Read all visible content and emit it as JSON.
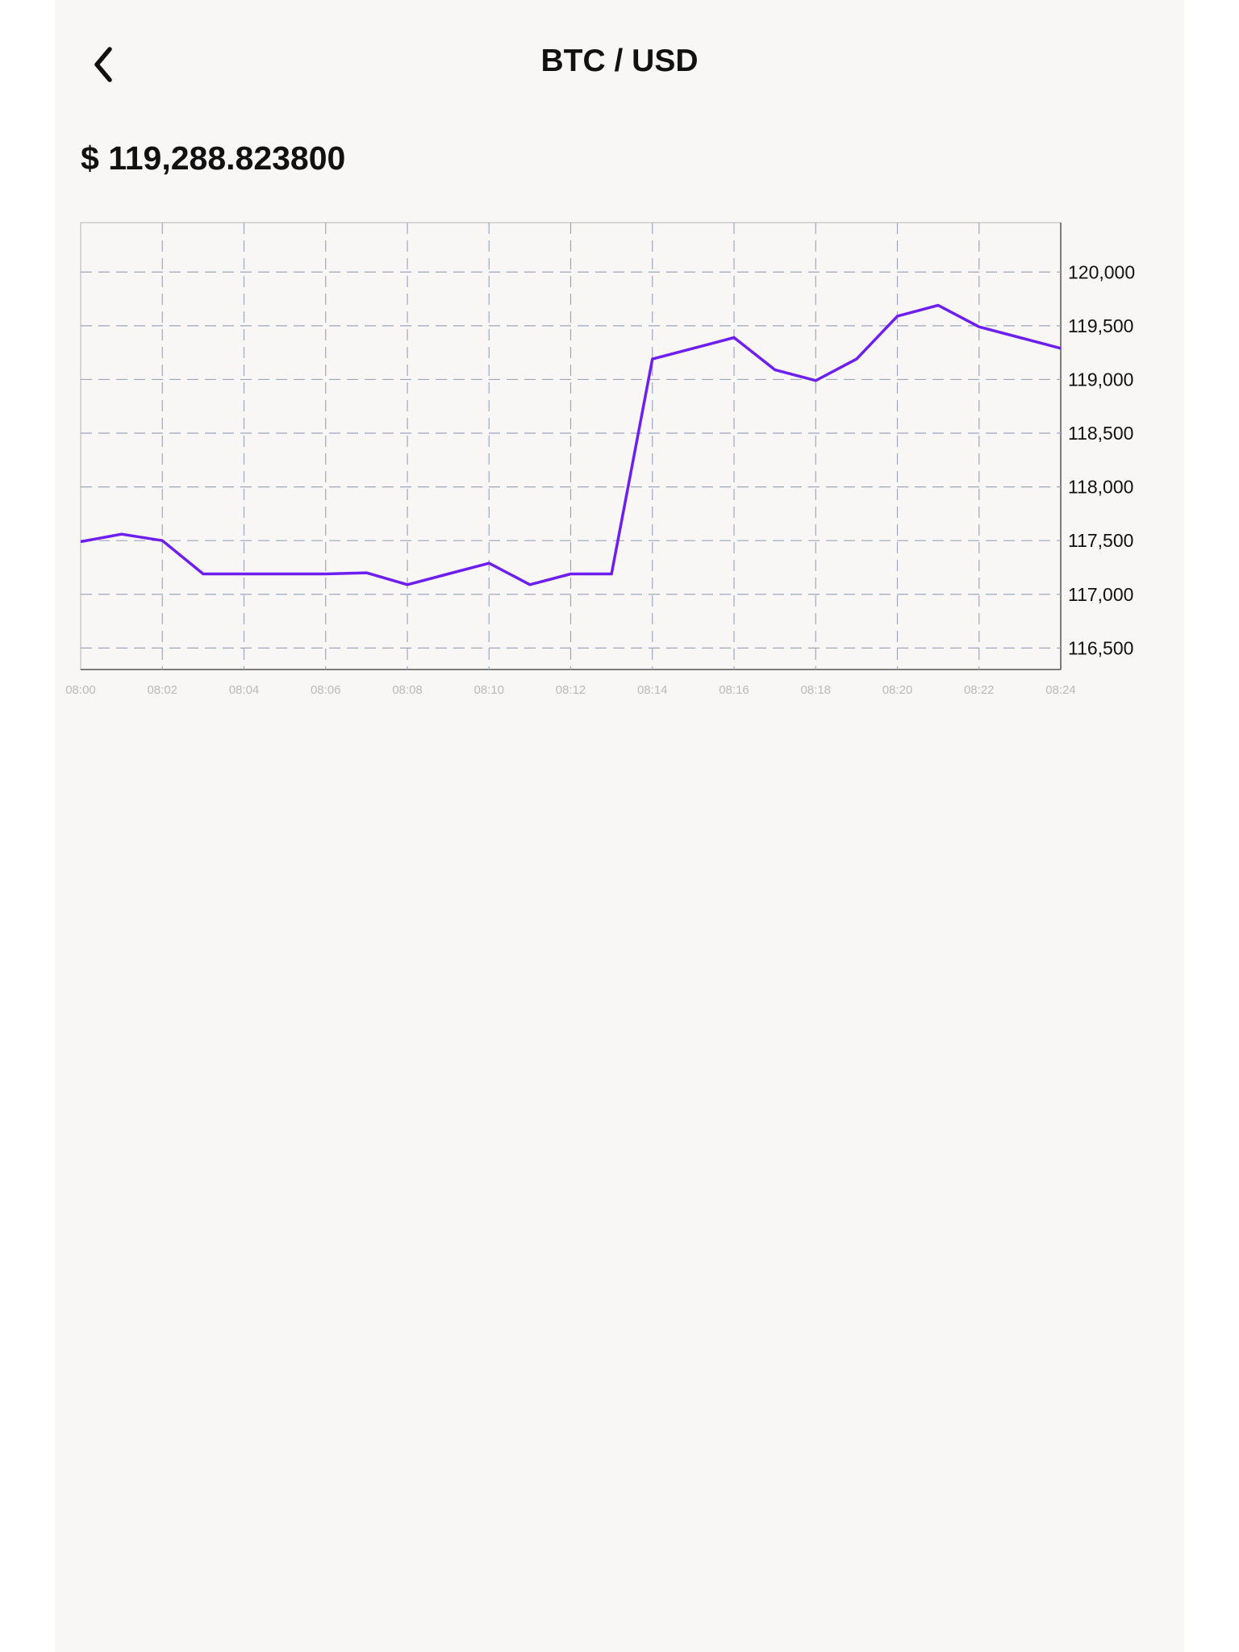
{
  "header": {
    "title": "BTC / USD",
    "back_icon": "chevron-left-icon"
  },
  "price": "$ 119,288.823800",
  "chart_data": {
    "type": "line",
    "x": [
      "08:00",
      "08:01",
      "08:02",
      "08:03",
      "08:04",
      "08:05",
      "08:06",
      "08:07",
      "08:08",
      "08:09",
      "08:10",
      "08:11",
      "08:12",
      "08:13",
      "08:14",
      "08:15",
      "08:16",
      "08:17",
      "08:18",
      "08:19",
      "08:20",
      "08:21",
      "08:22",
      "08:23",
      "08:24"
    ],
    "series": [
      {
        "values": [
          117490,
          117560,
          117500,
          117190,
          117190,
          117190,
          117190,
          117200,
          117090,
          117190,
          117290,
          117090,
          117190,
          117190,
          119190,
          119290,
          119390,
          119090,
          118990,
          119190,
          119590,
          119690,
          119490,
          119390,
          119290
        ]
      }
    ],
    "x_ticks": [
      "08:00",
      "08:02",
      "08:04",
      "08:06",
      "08:08",
      "08:10",
      "08:12",
      "08:14",
      "08:16",
      "08:18",
      "08:20",
      "08:22",
      "08:24"
    ],
    "y_ticks": [
      "120,000",
      "119,500",
      "119,000",
      "118,500",
      "118,000",
      "117,500",
      "117,000",
      "116,500"
    ],
    "y_tick_values": [
      120000,
      119500,
      119000,
      118500,
      118000,
      117500,
      117000,
      116500
    ],
    "ylim": [
      116300,
      120460
    ],
    "xlabel": "",
    "ylabel": "",
    "grid": true,
    "y_axis_side": "right",
    "line_color": "#6e1ff0",
    "grid_color": "#9ea6bf",
    "x_tick_color": "#b9b9b9"
  }
}
